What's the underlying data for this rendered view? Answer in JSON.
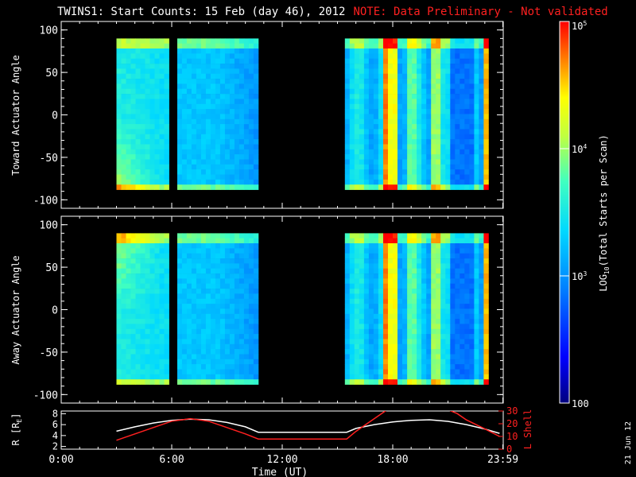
{
  "title": {
    "main": "TWINS1: Start Counts: 15 Feb (day  46), 2012",
    "note": "NOTE: Data Preliminary - Not validated"
  },
  "datestamp": "21 Jun 12",
  "colors": {
    "axis": "#ffffff",
    "note": "#ff2020",
    "r_line": "#ffffff",
    "lshell_line": "#ff2020"
  },
  "chart_data": [
    {
      "type": "heatmap",
      "panel": "toward",
      "xlabel": "",
      "ylabel": "Toward Actuator Angle",
      "xlim_hours": [
        0,
        24
      ],
      "ylim": [
        -110,
        110
      ],
      "y_ticks": [
        100,
        50,
        0,
        -50,
        -100
      ],
      "data_blocks_hours": [
        [
          3.0,
          5.85
        ],
        [
          6.3,
          10.7
        ],
        [
          15.4,
          23.2
        ]
      ],
      "y_extent": [
        -88,
        90
      ]
    },
    {
      "type": "heatmap",
      "panel": "away",
      "xlabel": "",
      "ylabel": "Away Actuator Angle",
      "xlim_hours": [
        0,
        24
      ],
      "ylim": [
        -110,
        110
      ],
      "y_ticks": [
        100,
        50,
        0,
        -50,
        -100
      ],
      "data_blocks_hours": [
        [
          3.0,
          5.85
        ],
        [
          6.3,
          10.7
        ],
        [
          15.4,
          23.2
        ]
      ],
      "y_extent": [
        -88,
        90
      ]
    },
    {
      "type": "line",
      "panel": "orbit",
      "xlabel": "Time (UT)",
      "x_ticks": [
        "0:00",
        "6:00",
        "12:00",
        "18:00",
        "23:59"
      ],
      "x_tick_hours": [
        0,
        6,
        12,
        18,
        23.98
      ],
      "y_left_label": "R [R",
      "y_left_label_sub": "E",
      "y_left_label_end": "]",
      "y_left_ticks": [
        8,
        6,
        4,
        2
      ],
      "y_left_lim": [
        1.5,
        8.5
      ],
      "y_right_label": "L Shell",
      "y_right_ticks": [
        30,
        20,
        10,
        0
      ],
      "y_right_lim": [
        0,
        30
      ],
      "series": [
        {
          "name": "R",
          "color": "#ffffff",
          "axis": "left",
          "x": [
            3,
            4,
            5,
            6,
            7,
            8,
            9,
            10,
            10.7,
            12,
            14,
            15.5,
            16,
            17,
            18,
            19,
            20,
            21,
            22,
            23,
            23.8
          ],
          "y": [
            4.8,
            5.6,
            6.3,
            6.8,
            7.0,
            6.9,
            6.4,
            5.6,
            4.6,
            4.6,
            4.6,
            4.6,
            5.3,
            6.0,
            6.5,
            6.8,
            6.9,
            6.6,
            6.0,
            5.2,
            4.4
          ]
        },
        {
          "name": "L Shell",
          "color": "#ff2020",
          "axis": "right",
          "x": [
            3,
            4,
            5,
            6,
            6.5,
            7,
            8,
            9,
            10,
            10.7,
            12,
            14,
            15.5,
            16,
            17,
            17.7,
            18.5,
            20,
            21,
            21.5,
            22,
            23,
            23.8
          ],
          "y": [
            7,
            12,
            17,
            22,
            23,
            24,
            22,
            17,
            12,
            8,
            8,
            8,
            8,
            14,
            24,
            31,
            31,
            31,
            31,
            28,
            23,
            16,
            10
          ]
        }
      ]
    },
    {
      "type": "colorbar",
      "label": "LOG",
      "label_sub": "10",
      "label_end": "(Total Starts per Scan)",
      "ticks": [
        {
          "base": "10",
          "exp": "5",
          "value": 100000
        },
        {
          "base": "10",
          "exp": "4",
          "value": 10000
        },
        {
          "base": "10",
          "exp": "3",
          "value": 1000
        },
        {
          "base": "100",
          "exp": "",
          "value": 100
        }
      ],
      "range": [
        100,
        100000
      ]
    }
  ]
}
